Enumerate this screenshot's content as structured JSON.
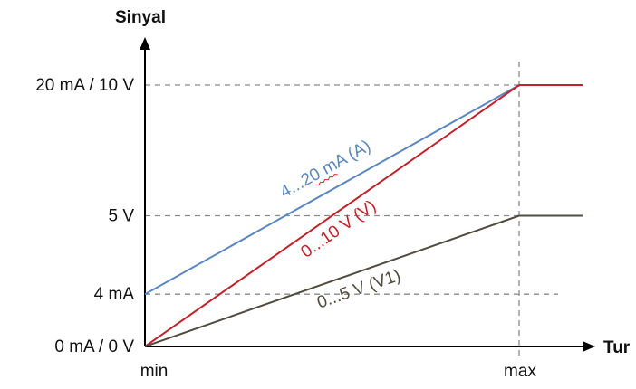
{
  "chart_data": {
    "type": "line",
    "title": "",
    "ylabel": "Sinyal",
    "xlabel": "Tur",
    "x_ticks": [
      "min",
      "max"
    ],
    "y_ticks": [
      {
        "label": "0 mA / 0 V",
        "level_fraction": 0.0
      },
      {
        "label": "4 mA",
        "level_fraction": 0.2
      },
      {
        "label": "5 V",
        "level_fraction": 0.5
      },
      {
        "label": "20 mA / 10 V",
        "level_fraction": 1.0
      }
    ],
    "x_domain": [
      0,
      1.17
    ],
    "y_domain": [
      0,
      1.3
    ],
    "grid": "dashed reference lines at y ticks and at max",
    "series": [
      {
        "name": "4...20 mA (A)",
        "color": "#5b87c0",
        "points": [
          {
            "x": 0,
            "y": 0.2
          },
          {
            "x": 1,
            "y": 1.0
          },
          {
            "x": 1.17,
            "y": 1.0
          }
        ]
      },
      {
        "name": "0...10 V (V)",
        "color": "#c2222a",
        "points": [
          {
            "x": 0,
            "y": 0.0
          },
          {
            "x": 1,
            "y": 1.0
          },
          {
            "x": 1.17,
            "y": 1.0
          }
        ]
      },
      {
        "name": "0...5 V (V1)",
        "color": "#514c3e",
        "points": [
          {
            "x": 0,
            "y": 0.0
          },
          {
            "x": 1,
            "y": 0.5
          },
          {
            "x": 1.17,
            "y": 0.5
          }
        ]
      }
    ]
  },
  "colors": {
    "axis": "#000000",
    "grid": "#8a8a8a",
    "spellcheck_underline": "#e03030"
  }
}
